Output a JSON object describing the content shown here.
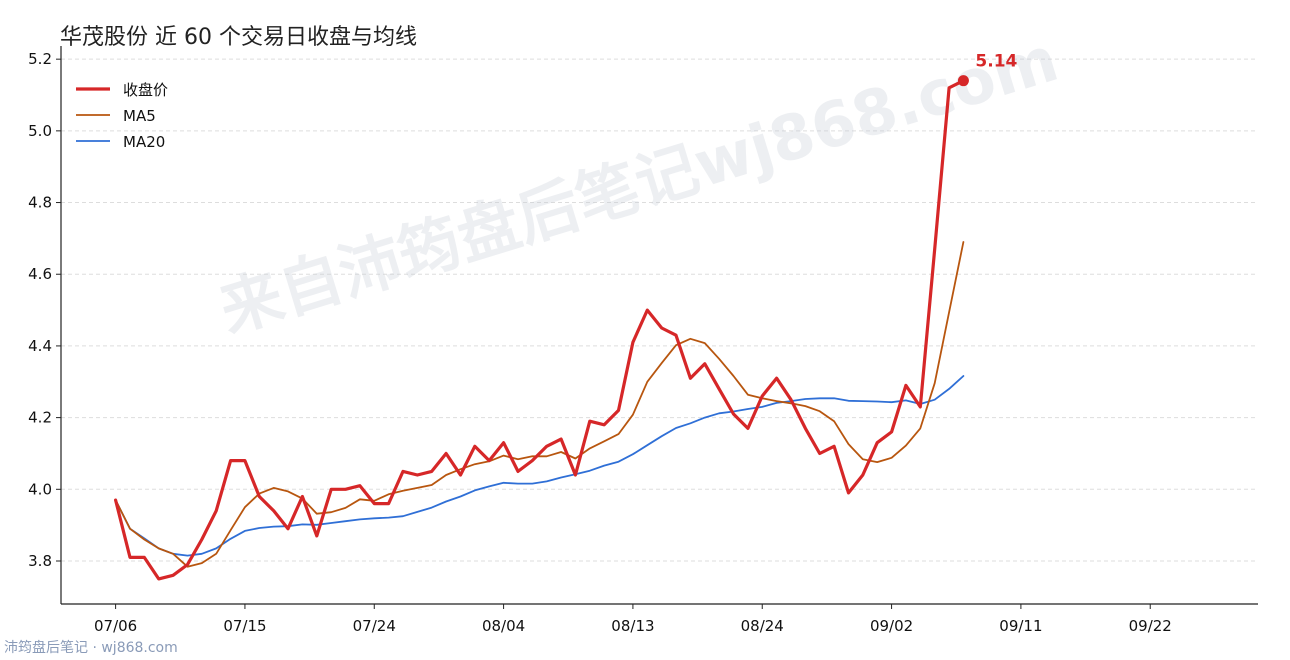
{
  "title": "华茂股份 近 60 个交易日收盘与均线",
  "watermark": "来自沛筠盘后笔记wj868.com",
  "footer": "沛筠盘后笔记 · wj868.com",
  "end_label": "5.14",
  "colors": {
    "close": "#d62728",
    "ma5": "#b8560f",
    "ma20": "#2f6fd6",
    "grid": "#dddddd",
    "axis": "#222222"
  },
  "chart_data": {
    "type": "line",
    "title": "华茂股份 近 60 个交易日收盘与均线",
    "x_tick_labels": [
      "07/06",
      "07/15",
      "07/24",
      "08/04",
      "08/13",
      "08/24",
      "09/02",
      "09/11",
      "09/22"
    ],
    "x_tick_indices": [
      0,
      9,
      18,
      27,
      36,
      45,
      54,
      63,
      72
    ],
    "x_range": [
      -3.8,
      79.5
    ],
    "ylim": [
      3.68,
      5.22
    ],
    "y_ticks": [
      3.8,
      4.0,
      4.2,
      4.4,
      4.6,
      4.8,
      5.0,
      5.2
    ],
    "grid": "horizontal",
    "legend_position": "top-left",
    "series": [
      {
        "name": "收盘价",
        "key": "close",
        "width": 3.2,
        "points": [
          [
            0,
            3.97
          ],
          [
            1,
            3.81
          ],
          [
            2,
            3.81
          ],
          [
            3,
            3.75
          ],
          [
            4,
            3.76
          ],
          [
            5,
            3.79
          ],
          [
            6,
            3.86
          ],
          [
            7,
            3.94
          ],
          [
            8,
            4.08
          ],
          [
            9,
            4.08
          ],
          [
            10,
            3.98
          ],
          [
            11,
            3.94
          ],
          [
            12,
            3.89
          ],
          [
            13,
            3.98
          ],
          [
            14,
            3.87
          ],
          [
            15,
            4.0
          ],
          [
            16,
            4.0
          ],
          [
            17,
            4.01
          ],
          [
            18,
            3.96
          ],
          [
            19,
            3.96
          ],
          [
            20,
            4.05
          ],
          [
            21,
            4.04
          ],
          [
            22,
            4.05
          ],
          [
            23,
            4.1
          ],
          [
            24,
            4.04
          ],
          [
            25,
            4.12
          ],
          [
            26,
            4.08
          ],
          [
            27,
            4.13
          ],
          [
            28,
            4.05
          ],
          [
            29,
            4.08
          ],
          [
            30,
            4.12
          ],
          [
            31,
            4.14
          ],
          [
            32,
            4.04
          ],
          [
            33,
            4.19
          ],
          [
            34,
            4.18
          ],
          [
            35,
            4.22
          ],
          [
            36,
            4.41
          ],
          [
            37,
            4.5
          ],
          [
            38,
            4.45
          ],
          [
            39,
            4.43
          ],
          [
            40,
            4.31
          ],
          [
            41,
            4.35
          ],
          [
            42,
            4.28
          ],
          [
            43,
            4.21
          ],
          [
            44,
            4.17
          ],
          [
            45,
            4.26
          ],
          [
            46,
            4.31
          ],
          [
            47,
            4.25
          ],
          [
            48,
            4.17
          ],
          [
            49,
            4.1
          ],
          [
            50,
            4.12
          ],
          [
            51,
            3.99
          ],
          [
            52,
            4.04
          ],
          [
            53,
            4.13
          ],
          [
            54,
            4.16
          ],
          [
            55,
            4.29
          ],
          [
            56,
            4.23
          ],
          [
            57,
            4.67
          ],
          [
            58,
            5.12
          ],
          [
            59,
            5.14
          ]
        ]
      },
      {
        "name": "MA5",
        "key": "ma5",
        "width": 1.8,
        "points": [
          [
            0,
            3.97
          ],
          [
            1,
            3.89
          ],
          [
            2,
            3.86
          ],
          [
            3,
            3.835
          ],
          [
            4,
            3.82
          ],
          [
            5,
            3.784
          ],
          [
            6,
            3.794
          ],
          [
            7,
            3.82
          ],
          [
            8,
            3.886
          ],
          [
            9,
            3.95
          ],
          [
            10,
            3.988
          ],
          [
            11,
            4.004
          ],
          [
            12,
            3.994
          ],
          [
            13,
            3.974
          ],
          [
            14,
            3.932
          ],
          [
            15,
            3.936
          ],
          [
            16,
            3.948
          ],
          [
            17,
            3.972
          ],
          [
            18,
            3.968
          ],
          [
            19,
            3.986
          ],
          [
            20,
            3.996
          ],
          [
            21,
            4.004
          ],
          [
            22,
            4.012
          ],
          [
            23,
            4.04
          ],
          [
            24,
            4.056
          ],
          [
            25,
            4.07
          ],
          [
            26,
            4.078
          ],
          [
            27,
            4.094
          ],
          [
            28,
            4.084
          ],
          [
            29,
            4.092
          ],
          [
            30,
            4.092
          ],
          [
            31,
            4.104
          ],
          [
            32,
            4.086
          ],
          [
            33,
            4.114
          ],
          [
            34,
            4.134
          ],
          [
            35,
            4.154
          ],
          [
            36,
            4.208
          ],
          [
            37,
            4.3
          ],
          [
            38,
            4.352
          ],
          [
            39,
            4.402
          ],
          [
            40,
            4.42
          ],
          [
            41,
            4.408
          ],
          [
            42,
            4.364
          ],
          [
            43,
            4.316
          ],
          [
            44,
            4.264
          ],
          [
            45,
            4.254
          ],
          [
            46,
            4.246
          ],
          [
            47,
            4.24
          ],
          [
            48,
            4.232
          ],
          [
            49,
            4.218
          ],
          [
            50,
            4.19
          ],
          [
            51,
            4.126
          ],
          [
            52,
            4.084
          ],
          [
            53,
            4.076
          ],
          [
            54,
            4.088
          ],
          [
            55,
            4.122
          ],
          [
            56,
            4.17
          ],
          [
            57,
            4.296
          ],
          [
            58,
            4.494
          ],
          [
            59,
            4.69
          ]
        ]
      },
      {
        "name": "MA20",
        "key": "ma20",
        "width": 1.8,
        "points": [
          [
            0,
            3.97
          ],
          [
            1,
            3.89
          ],
          [
            2,
            3.863
          ],
          [
            3,
            3.835
          ],
          [
            4,
            3.82
          ],
          [
            5,
            3.815
          ],
          [
            6,
            3.82
          ],
          [
            7,
            3.835
          ],
          [
            8,
            3.862
          ],
          [
            9,
            3.884
          ],
          [
            10,
            3.892
          ],
          [
            11,
            3.896
          ],
          [
            12,
            3.897
          ],
          [
            13,
            3.902
          ],
          [
            14,
            3.901
          ],
          [
            15,
            3.906
          ],
          [
            16,
            3.911
          ],
          [
            17,
            3.916
          ],
          [
            18,
            3.919
          ],
          [
            19,
            3.921
          ],
          [
            20,
            3.925
          ],
          [
            21,
            3.937
          ],
          [
            22,
            3.949
          ],
          [
            23,
            3.966
          ],
          [
            24,
            3.98
          ],
          [
            25,
            3.997
          ],
          [
            26,
            4.008
          ],
          [
            27,
            4.018
          ],
          [
            28,
            4.016
          ],
          [
            29,
            4.016
          ],
          [
            30,
            4.022
          ],
          [
            31,
            4.033
          ],
          [
            32,
            4.042
          ],
          [
            33,
            4.052
          ],
          [
            34,
            4.066
          ],
          [
            35,
            4.077
          ],
          [
            36,
            4.098
          ],
          [
            37,
            4.123
          ],
          [
            38,
            4.148
          ],
          [
            39,
            4.171
          ],
          [
            40,
            4.184
          ],
          [
            41,
            4.2
          ],
          [
            42,
            4.212
          ],
          [
            43,
            4.217
          ],
          [
            44,
            4.224
          ],
          [
            45,
            4.23
          ],
          [
            46,
            4.241
          ],
          [
            47,
            4.246
          ],
          [
            48,
            4.252
          ],
          [
            49,
            4.254
          ],
          [
            50,
            4.254
          ],
          [
            51,
            4.247
          ],
          [
            52,
            4.246
          ],
          [
            53,
            4.245
          ],
          [
            54,
            4.243
          ],
          [
            55,
            4.248
          ],
          [
            56,
            4.238
          ],
          [
            57,
            4.25
          ],
          [
            58,
            4.28
          ],
          [
            59,
            4.316
          ]
        ]
      }
    ]
  }
}
